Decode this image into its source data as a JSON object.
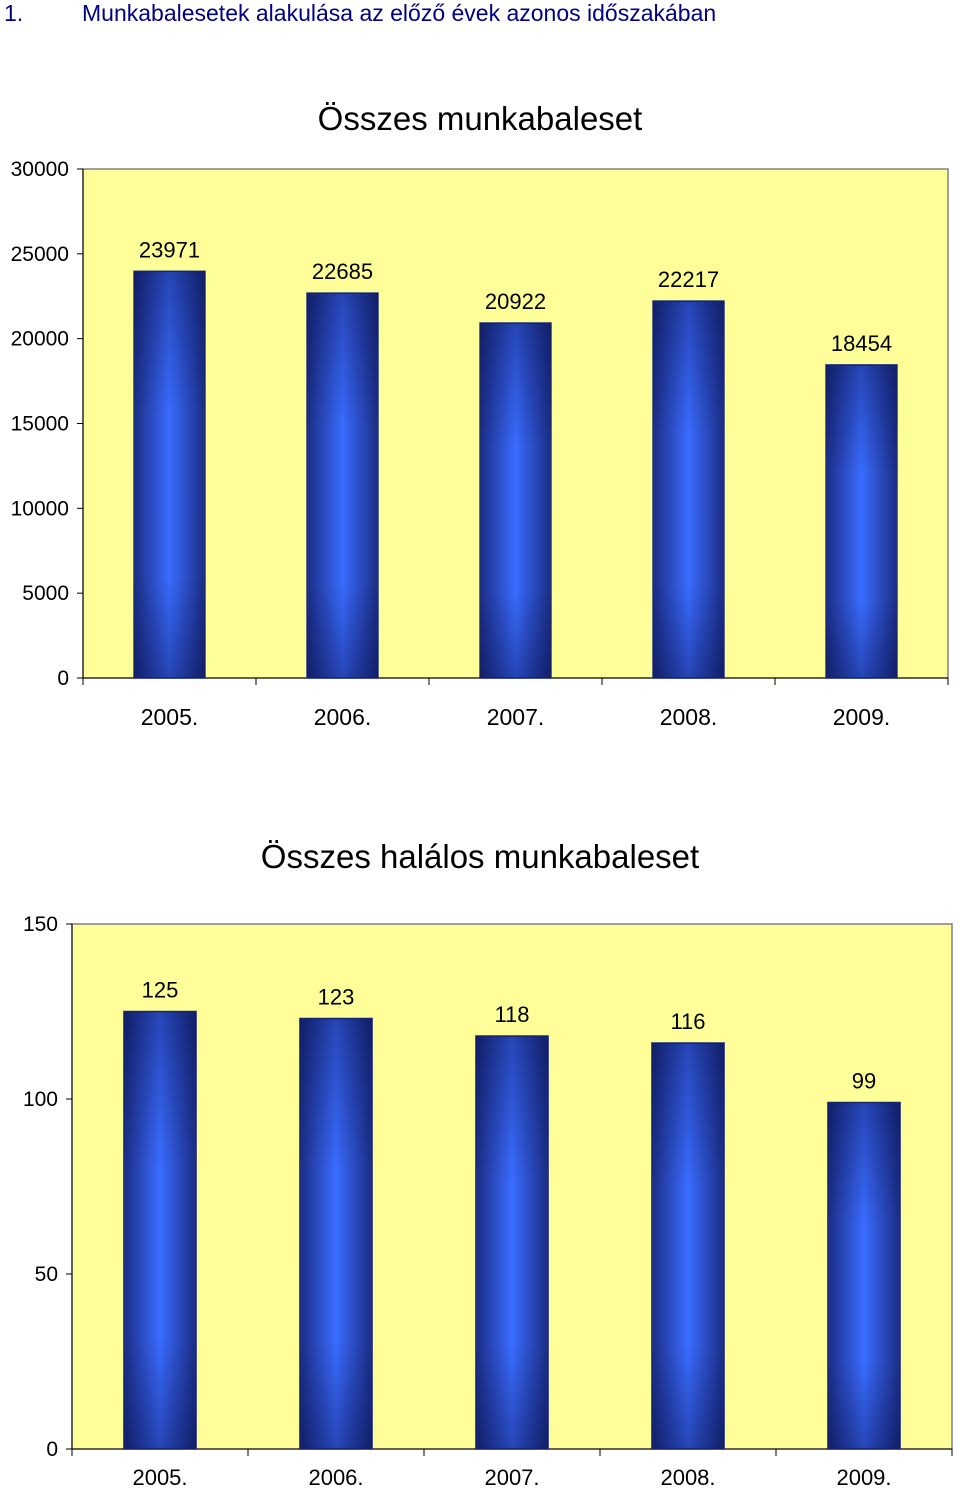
{
  "heading": {
    "number": "1.",
    "text": "Munkabalesetek alakulása az előző évek azonos időszakában"
  },
  "colors": {
    "plot_bg": "#FFFF99",
    "bar_edge": "#1F2F7F",
    "bar_dark": "#1B2D85",
    "bar_light": "#3A6CFF",
    "heading": "#000080"
  },
  "chart_data": [
    {
      "type": "bar",
      "title": "Összes munkabaleset",
      "categories": [
        "2005.",
        "2006.",
        "2007.",
        "2008.",
        "2009."
      ],
      "values": [
        23971,
        22685,
        20922,
        22217,
        18454
      ],
      "data_labels": [
        "23971",
        "22685",
        "20922",
        "22217",
        "18454"
      ],
      "ylim": [
        0,
        30000
      ],
      "yticks": [
        0,
        5000,
        10000,
        15000,
        20000,
        25000,
        30000
      ],
      "ytick_labels": [
        "0",
        "5000",
        "10000",
        "15000",
        "20000",
        "25000",
        "30000"
      ],
      "grid": false,
      "xlabel": "",
      "ylabel": ""
    },
    {
      "type": "bar",
      "title": "Összes halálos munkabaleset",
      "categories": [
        "2005.",
        "2006.",
        "2007.",
        "2008.",
        "2009."
      ],
      "values": [
        125,
        123,
        118,
        116,
        99
      ],
      "data_labels": [
        "125",
        "123",
        "118",
        "116",
        "99"
      ],
      "ylim": [
        0,
        150
      ],
      "yticks": [
        0,
        50,
        100,
        150
      ],
      "ytick_labels": [
        "0",
        "50",
        "100",
        "150"
      ],
      "grid": false,
      "xlabel": "",
      "ylabel": ""
    }
  ]
}
